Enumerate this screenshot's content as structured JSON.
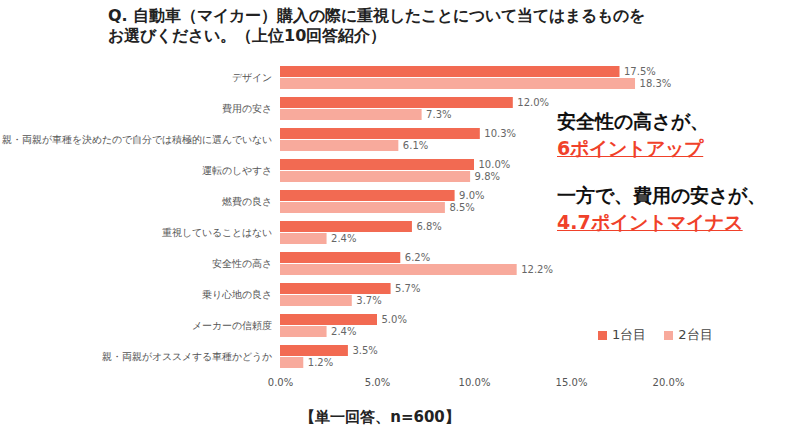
{
  "chart_data": {
    "type": "bar",
    "orientation": "horizontal",
    "title": "Q. 自動車（マイカー）購入の際に重視したことについて当てはまるものを\nお選びください。（上位10回答紹介）",
    "caption": "【単一回答、n=600】",
    "annotations": [
      [
        "安全性の高さが、",
        "6ポイントアップ"
      ],
      [
        "一方で、費用の安さが、",
        "4.7ポイントマイナス"
      ]
    ],
    "categories": [
      "デザイン",
      "費用の安さ",
      "親・両親が車種を決めたので自分では積極的に選んでいない",
      "運転のしやすさ",
      "燃費の良さ",
      "重視していることはない",
      "安全性の高さ",
      "乗り心地の良さ",
      "メーカーの信頼度",
      "親・両親がオススメする車種かどうか"
    ],
    "series": [
      {
        "name": "1台目",
        "color": "#f26a52",
        "values": [
          17.5,
          12.0,
          10.3,
          10.0,
          9.0,
          6.8,
          6.2,
          5.7,
          5.0,
          3.5
        ],
        "value_labels": [
          "17.5%",
          "12.0%",
          "10.3%",
          "10.0%",
          "9.0%",
          "6.8%",
          "6.2%",
          "5.7%",
          "5.0%",
          "3.5%"
        ]
      },
      {
        "name": "2台目",
        "color": "#f8aa9c",
        "values": [
          18.3,
          7.3,
          6.1,
          9.8,
          8.5,
          2.4,
          12.2,
          3.7,
          2.4,
          1.2
        ],
        "value_labels": [
          "18.3%",
          "7.3%",
          "6.1%",
          "9.8%",
          "8.5%",
          "2.4%",
          "12.2%",
          "3.7%",
          "2.4%",
          "1.2%"
        ]
      }
    ],
    "xlim": [
      0,
      20
    ],
    "xticks": [
      {
        "value": 0,
        "label": "0.0%"
      },
      {
        "value": 5,
        "label": "5.0%"
      },
      {
        "value": 10,
        "label": "10.0%"
      },
      {
        "value": 15,
        "label": "15.0%"
      },
      {
        "value": 20,
        "label": "20.0%"
      }
    ],
    "grid": false,
    "legend": "bottom-right",
    "data_labels": true
  }
}
